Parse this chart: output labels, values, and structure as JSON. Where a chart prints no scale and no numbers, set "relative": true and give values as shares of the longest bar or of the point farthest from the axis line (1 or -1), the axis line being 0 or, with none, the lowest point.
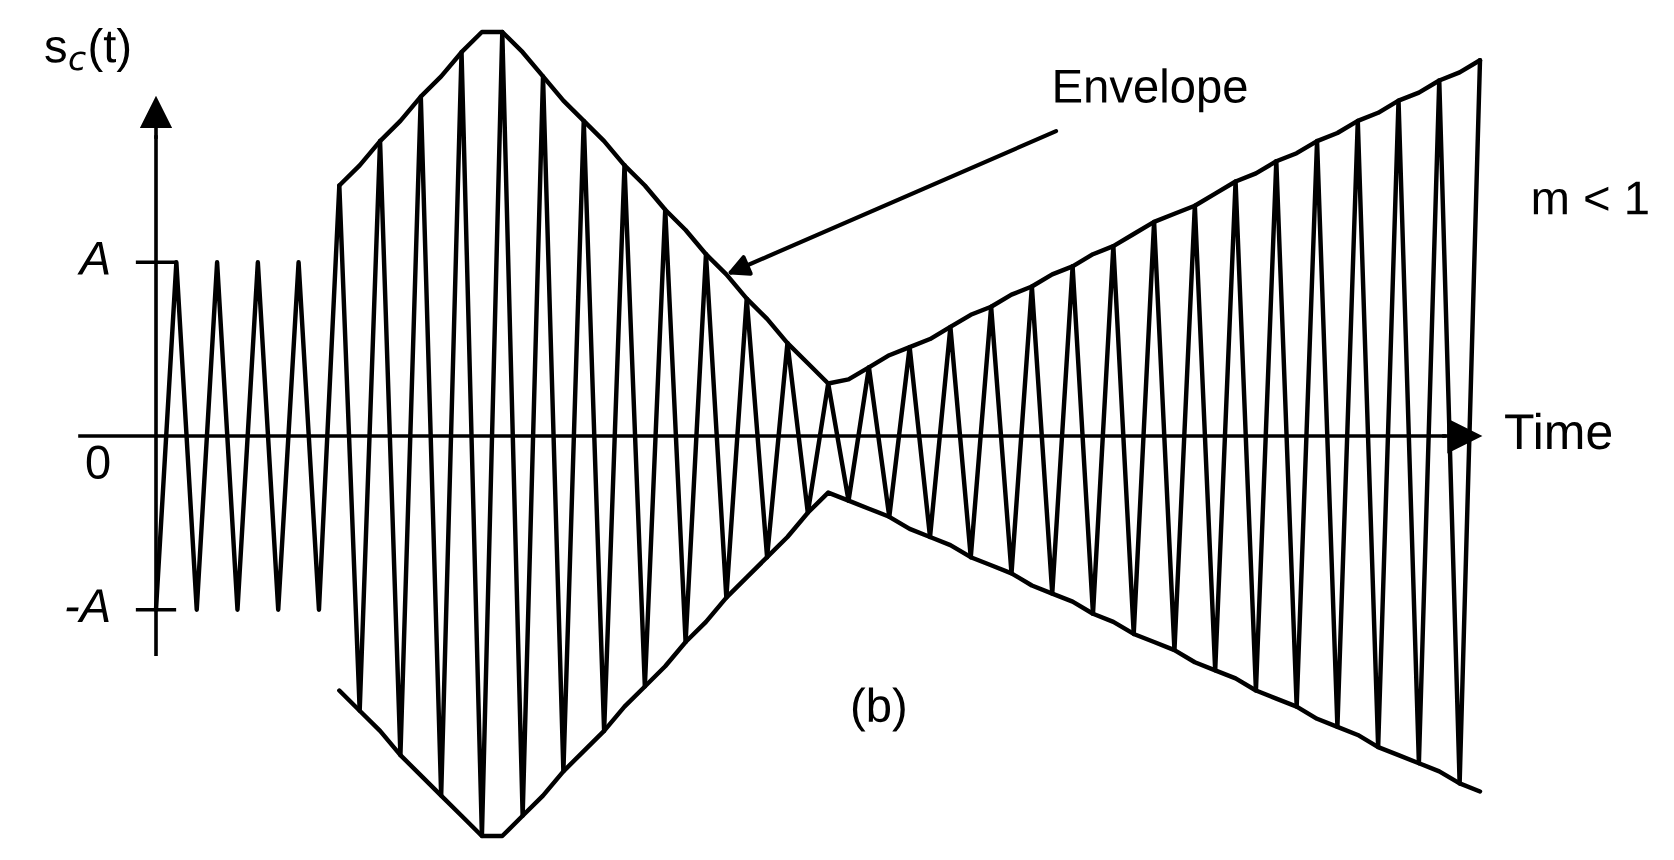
{
  "chart_data": {
    "type": "line",
    "ylabel": "s$_{c}$(t)",
    "xlabel": "Time",
    "relative": true,
    "categories": [
      null,
      null,
      null,
      null,
      null,
      null,
      null,
      null,
      null,
      null,
      null,
      null,
      null,
      null,
      null,
      null,
      null,
      null,
      null,
      null,
      null,
      null,
      null,
      null,
      null,
      null,
      null,
      null,
      null,
      null,
      null,
      null,
      null,
      null,
      null,
      null,
      null,
      null,
      null,
      null,
      null,
      null,
      null,
      null,
      null,
      null,
      null,
      null,
      null,
      null,
      null,
      null,
      null,
      null,
      null,
      null,
      null,
      null,
      null,
      null,
      null,
      null,
      null,
      null,
      null,
      null
    ],
    "series": [
      {
        "color": "#000000",
        "values": [
          -0.43,
          0.43,
          -0.43,
          0.43,
          -0.43,
          0.43,
          -0.43,
          0.43,
          -0.43,
          0.62,
          -0.68,
          0.73,
          -0.79,
          0.84,
          -0.89,
          0.95,
          -0.99,
          1,
          -0.94,
          0.89,
          -0.83,
          0.78,
          -0.73,
          0.67,
          -0.62,
          0.56,
          -0.51,
          0.45,
          -0.4,
          0.34,
          -0.3,
          0.23,
          -0.19,
          0.13,
          -0.16,
          0.17,
          -0.2,
          0.22,
          -0.25,
          0.27,
          -0.3,
          0.32,
          -0.34,
          0.37,
          -0.39,
          0.42,
          -0.44,
          0.47,
          -0.49,
          0.53,
          -0.53,
          0.57,
          -0.58,
          0.63,
          -0.63,
          0.68,
          -0.67,
          0.73,
          -0.72,
          0.78,
          -0.77,
          0.83,
          -0.81,
          0.88,
          -0.86,
          0.93
        ]
      },
      {
        "color": "#000000",
        "values": [
          null,
          null,
          null,
          null,
          null,
          null,
          null,
          null,
          null,
          0.62,
          0.67,
          0.73,
          0.78,
          0.84,
          0.89,
          0.95,
          1,
          1,
          0.95,
          0.89,
          0.83,
          0.78,
          0.73,
          0.67,
          0.62,
          0.56,
          0.51,
          0.45,
          0.4,
          0.34,
          0.29,
          0.23,
          0.18,
          0.13,
          0.14,
          0.17,
          0.2,
          0.22,
          0.24,
          0.27,
          0.3,
          0.32,
          0.35,
          0.37,
          0.4,
          0.42,
          0.45,
          0.47,
          0.5,
          0.53,
          0.55,
          0.57,
          0.6,
          0.63,
          0.65,
          0.68,
          0.7,
          0.73,
          0.75,
          0.78,
          0.8,
          0.83,
          0.85,
          0.88,
          0.9,
          0.93
        ]
      },
      {
        "color": "#000000",
        "values": [
          null,
          null,
          null,
          null,
          null,
          null,
          null,
          null,
          null,
          -0.63,
          -0.68,
          -0.73,
          -0.79,
          -0.84,
          -0.89,
          -0.94,
          -0.99,
          -0.99,
          -0.94,
          -0.89,
          -0.83,
          -0.78,
          -0.73,
          -0.67,
          -0.62,
          -0.57,
          -0.51,
          -0.46,
          -0.4,
          -0.35,
          -0.3,
          -0.25,
          -0.19,
          -0.14,
          -0.16,
          -0.18,
          -0.2,
          -0.23,
          -0.25,
          -0.27,
          -0.3,
          -0.32,
          -0.34,
          -0.37,
          -0.39,
          -0.41,
          -0.44,
          -0.46,
          -0.49,
          -0.51,
          -0.53,
          -0.56,
          -0.58,
          -0.6,
          -0.63,
          -0.65,
          -0.67,
          -0.7,
          -0.72,
          -0.74,
          -0.77,
          -0.79,
          -0.81,
          -0.83,
          -0.86,
          -0.88
        ]
      }
    ],
    "annotations": [
      "A",
      "0",
      "-A",
      "Envelope",
      "(b)",
      "m < 1"
    ]
  }
}
